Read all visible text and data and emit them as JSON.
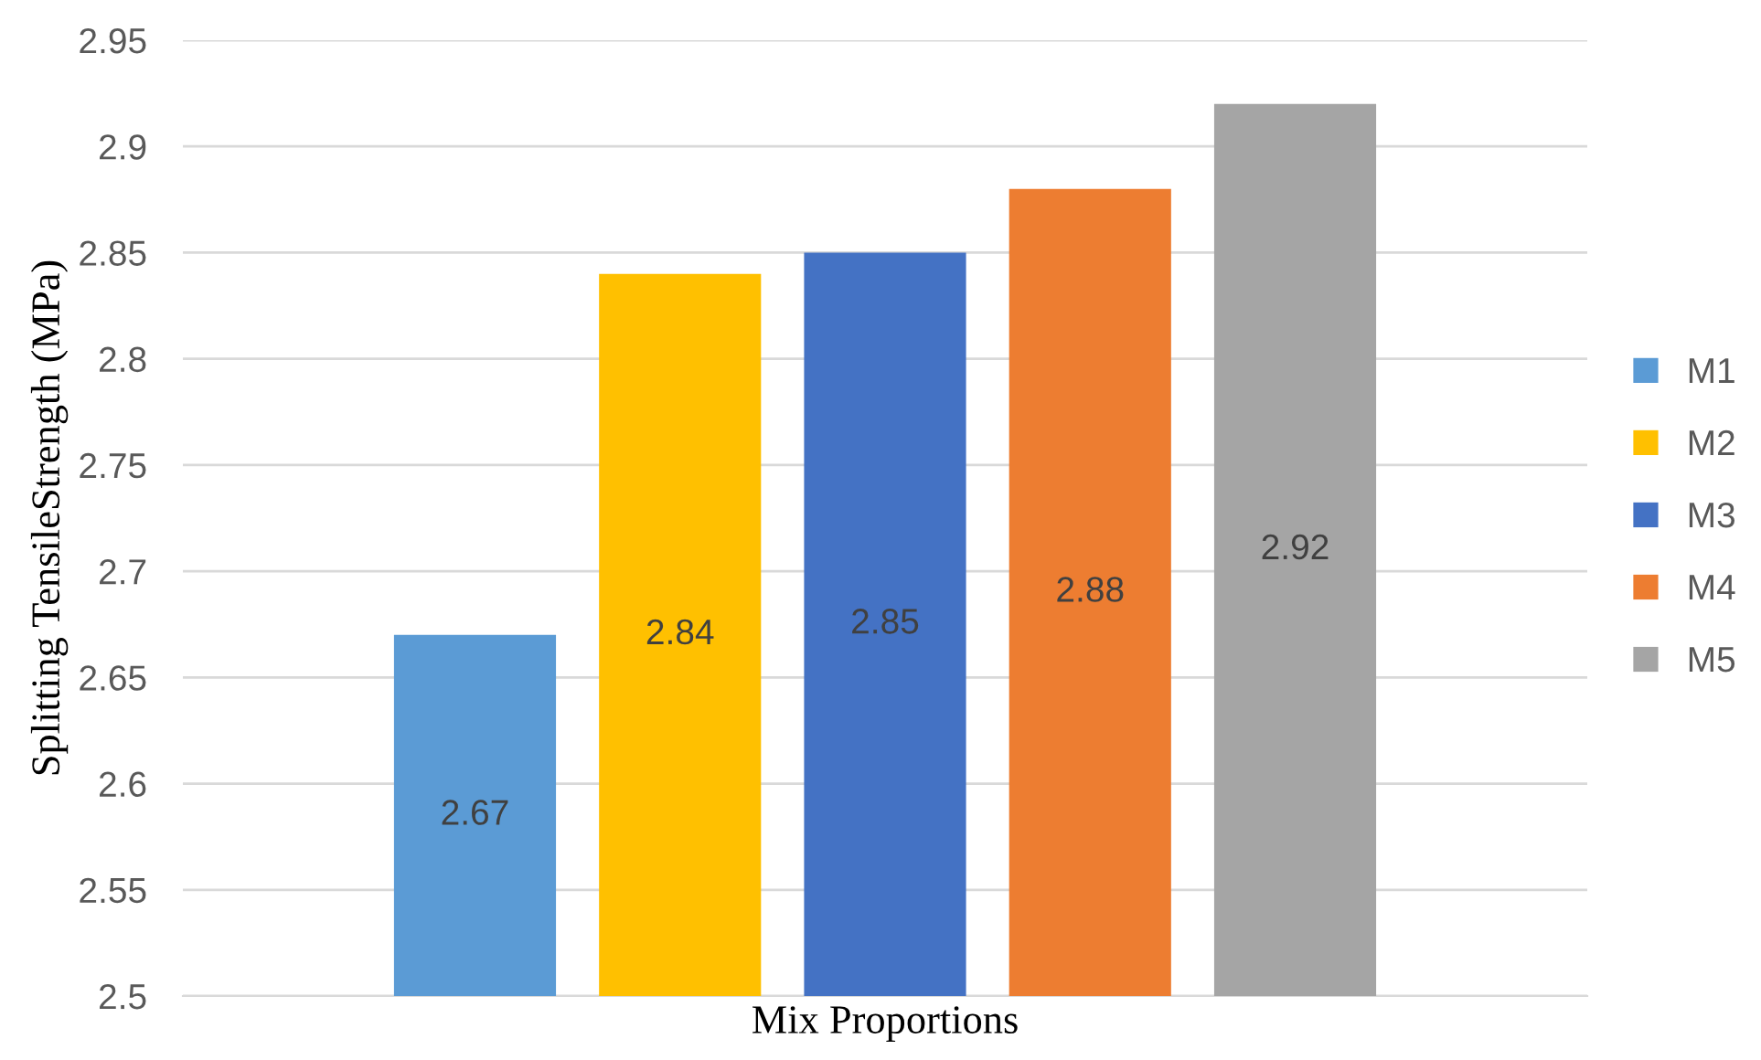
{
  "chart_data": {
    "type": "bar",
    "xlabel": "Mix Proportions",
    "ylabel": "Splitting TensileStrength (MPa)",
    "categories": [
      null
    ],
    "series": [
      {
        "name": "M1",
        "color": "#5b9bd5",
        "values": [
          2.67
        ]
      },
      {
        "name": "M2",
        "color": "#ffc000",
        "values": [
          2.84
        ]
      },
      {
        "name": "M3",
        "color": "#4472c4",
        "values": [
          2.85
        ]
      },
      {
        "name": "M4",
        "color": "#ed7d31",
        "values": [
          2.88
        ]
      },
      {
        "name": "M5",
        "color": "#a5a5a5",
        "values": [
          2.92
        ]
      }
    ],
    "ylim": [
      2.5,
      2.95
    ],
    "yticks": [
      2.5,
      2.55,
      2.6,
      2.65,
      2.7,
      2.75,
      2.8,
      2.85,
      2.9,
      2.95
    ],
    "grid": "y",
    "legend": "right",
    "data_labels": true
  }
}
